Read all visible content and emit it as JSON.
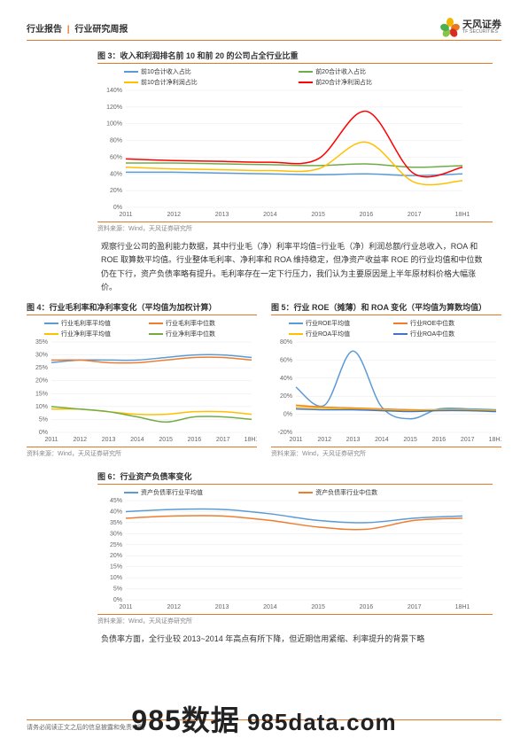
{
  "header": {
    "left_a": "行业报告",
    "left_b": "行业研究周报",
    "logo_cn": "天风证券",
    "logo_en": "TF SECURITIES"
  },
  "chart3": {
    "title": "图 3：收入和利润排名前 10 和前 20 的公司占全行业比重",
    "source": "资料来源：Wind，天风证券研究所",
    "x_labels": [
      "2011",
      "2012",
      "2013",
      "2014",
      "2015",
      "2016",
      "2017",
      "18H1"
    ],
    "y_labels": [
      "0%",
      "20%",
      "40%",
      "60%",
      "80%",
      "100%",
      "120%",
      "140%"
    ],
    "ylim": [
      0,
      140
    ],
    "series": [
      {
        "name": "前10合计收入占比",
        "color": "#5b9bd5",
        "y": [
          42,
          42,
          41,
          40,
          39,
          40,
          38,
          40
        ]
      },
      {
        "name": "前20合计收入占比",
        "color": "#70ad47",
        "y": [
          53,
          53,
          52,
          51,
          50,
          52,
          48,
          50
        ]
      },
      {
        "name": "前10合计净利润占比",
        "color": "#ffc000",
        "y": [
          48,
          46,
          45,
          44,
          46,
          78,
          30,
          32
        ]
      },
      {
        "name": "前20合计净利润占比",
        "color": "#ff0000",
        "y": [
          58,
          56,
          55,
          54,
          58,
          115,
          40,
          48
        ]
      }
    ]
  },
  "para1": "观察行业公司的盈利能力数据，其中行业毛（净）利率平均值=行业毛（净）利润总额/行业总收入，ROA 和 ROE 取算数平均值。行业整体毛利率、净利率和 ROA 维持稳定，但净资产收益率 ROE 的行业均值和中位数仍在下行，资产负债率略有提升。毛利率存在一定下行压力，我们认为主要原因是上半年原材料价格大幅涨价。",
  "chart4": {
    "title": "图 4：行业毛利率和净利率变化（平均值为加权计算）",
    "source": "资料来源：Wind，天风证券研究所",
    "x_labels": [
      "2011",
      "2012",
      "2013",
      "2014",
      "2015",
      "2016",
      "2017",
      "18H1"
    ],
    "y_labels": [
      "0%",
      "5%",
      "10%",
      "15%",
      "20%",
      "25%",
      "30%",
      "35%"
    ],
    "ylim": [
      0,
      35
    ],
    "series": [
      {
        "name": "行业毛利率平均值",
        "color": "#5b9bd5",
        "y": [
          27,
          28,
          28,
          28,
          29,
          30,
          30,
          29
        ]
      },
      {
        "name": "行业毛利率中位数",
        "color": "#ed7d31",
        "y": [
          28,
          28,
          27,
          27,
          28,
          29,
          29,
          28
        ]
      },
      {
        "name": "行业净利率平均值",
        "color": "#ffc000",
        "y": [
          9,
          9,
          8,
          7,
          7,
          8,
          8,
          7
        ]
      },
      {
        "name": "行业净利率中位数",
        "color": "#70ad47",
        "y": [
          10,
          9,
          8,
          6,
          4,
          6,
          6,
          5
        ]
      }
    ]
  },
  "chart5": {
    "title": "图 5：行业 ROE（摊薄）和 ROA 变化（平均值为算数均值）",
    "source": "资料来源：Wind，天风证券研究所",
    "x_labels": [
      "2011",
      "2012",
      "2013",
      "2014",
      "2015",
      "2016",
      "2017",
      "18H1"
    ],
    "y_labels": [
      "-20%",
      "0%",
      "20%",
      "40%",
      "60%",
      "80%"
    ],
    "ylim": [
      -20,
      80
    ],
    "series": [
      {
        "name": "行业ROE平均值",
        "color": "#5b9bd5",
        "y": [
          30,
          10,
          70,
          8,
          -5,
          6,
          6,
          5
        ]
      },
      {
        "name": "行业ROE中位数",
        "color": "#ed7d31",
        "y": [
          10,
          8,
          7,
          6,
          5,
          5,
          5,
          4
        ]
      },
      {
        "name": "行业ROA平均值",
        "color": "#ffc000",
        "y": [
          8,
          7,
          6,
          5,
          4,
          5,
          5,
          4
        ]
      },
      {
        "name": "行业ROA中位数",
        "color": "#4472c4",
        "y": [
          6,
          5,
          5,
          4,
          3,
          4,
          4,
          3
        ]
      }
    ]
  },
  "chart6": {
    "title": "图 6：行业资产负债率变化",
    "source": "资料来源：Wind，天风证券研究所",
    "x_labels": [
      "2011",
      "2012",
      "2013",
      "2014",
      "2015",
      "2016",
      "2017",
      "18H1"
    ],
    "y_labels": [
      "0%",
      "5%",
      "10%",
      "15%",
      "20%",
      "25%",
      "30%",
      "35%",
      "40%",
      "45%"
    ],
    "ylim": [
      0,
      45
    ],
    "series": [
      {
        "name": "资产负债率行业平均值",
        "color": "#5b9bd5",
        "y": [
          40,
          41,
          41,
          39,
          36,
          35,
          37,
          38
        ]
      },
      {
        "name": "资产负债率行业中位数",
        "color": "#ed7d31",
        "y": [
          37,
          38,
          38,
          36,
          33,
          32,
          36,
          37
        ]
      }
    ]
  },
  "para2": "负债率方面，全行业较 2013~2014 年高点有所下降，但近期信用紧缩、利率提升的背景下略",
  "footer": "请务必阅读正文之后的信息披露和免责申明",
  "watermark_a": "985数据",
  "watermark_b": "985data.com",
  "colors": {
    "orange": "#e87722",
    "grid": "#e8e8e8",
    "axis": "#666666"
  }
}
